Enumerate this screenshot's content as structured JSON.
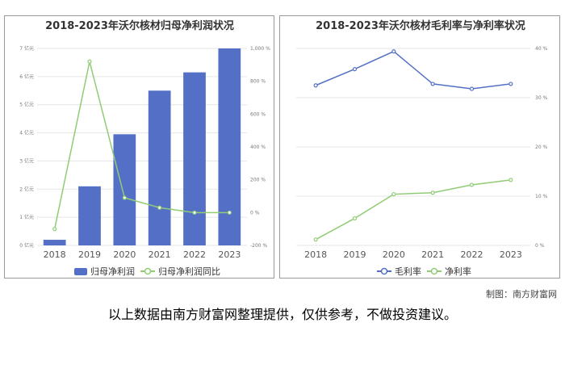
{
  "credit": "制图：南方财富网",
  "disclaimer": "以上数据由南方财富网整理提供，仅供参考，不做投资建议。",
  "colors": {
    "bar": "#5470c6",
    "green": "#91cc75",
    "blue": "#5470c6",
    "grid": "#e6e6e6"
  },
  "chart_data": [
    {
      "type": "bar",
      "title": "2018-2023年沃尔核材归母净利润状况",
      "categories": [
        "2018",
        "2019",
        "2020",
        "2021",
        "2022",
        "2023"
      ],
      "y_ticks_left": [
        "0 亿元",
        "1 亿元",
        "2 亿元",
        "3 亿元",
        "4 亿元",
        "5 亿元",
        "6 亿元",
        "7 亿元"
      ],
      "y_ticks_right": [
        "-200 %",
        "0 %",
        "200 %",
        "400 %",
        "600 %",
        "800 %",
        "1,000 %"
      ],
      "ylim_left": [
        0,
        7
      ],
      "ylim_right": [
        -200,
        1000
      ],
      "series": [
        {
          "name": "归母净利润",
          "kind": "bar",
          "axis": "left",
          "values": [
            0.2,
            2.1,
            3.95,
            5.5,
            6.15,
            7.0
          ]
        },
        {
          "name": "归母净利润同比",
          "kind": "line",
          "axis": "right",
          "values": [
            -100,
            920,
            90,
            30,
            0,
            0
          ]
        }
      ],
      "legend": "bottom"
    },
    {
      "type": "line",
      "title": "2018-2023年沃尔核材毛利率与净利率状况",
      "categories": [
        "2018",
        "2019",
        "2020",
        "2021",
        "2022",
        "2023"
      ],
      "y_ticks_right": [
        "0 %",
        "10 %",
        "20 %",
        "30 %",
        "40 %"
      ],
      "ylim": [
        0,
        40
      ],
      "series": [
        {
          "name": "毛利率",
          "values": [
            32.5,
            35.8,
            39.4,
            32.8,
            31.8,
            32.8
          ]
        },
        {
          "name": "净利率",
          "values": [
            1.2,
            5.5,
            10.4,
            10.7,
            12.3,
            13.3
          ]
        }
      ],
      "legend": "bottom"
    }
  ]
}
